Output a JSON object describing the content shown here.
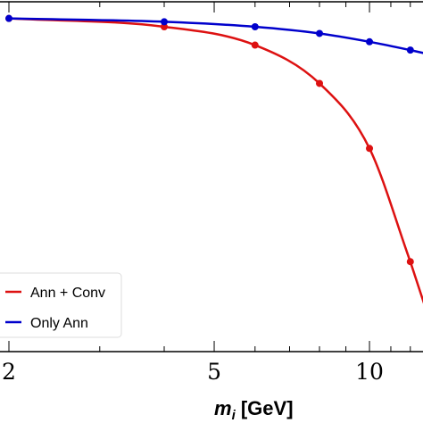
{
  "chart_data": {
    "type": "line",
    "xscale": "log",
    "xlim": [
      2,
      12.8
    ],
    "ylim": [
      0,
      1.05
    ],
    "x_ticks_labeled": [
      2,
      5,
      10
    ],
    "x_tick_labels": [
      "2",
      "5",
      "10"
    ],
    "xlabel_main": "m",
    "xlabel_sub": "i",
    "xlabel_rest": " [GeV]",
    "grid": false,
    "legend_position": "lower-left",
    "series": [
      {
        "name": "Ann + Conv",
        "color": "#dd1111",
        "x": [
          2,
          4,
          6,
          8,
          10,
          12
        ],
        "y": [
          1.0,
          0.975,
          0.92,
          0.805,
          0.61,
          0.27
        ]
      },
      {
        "name": "Only Ann",
        "color": "#0000cc",
        "x": [
          2,
          4,
          6,
          8,
          10,
          12
        ],
        "y": [
          1.0,
          0.99,
          0.975,
          0.955,
          0.93,
          0.905
        ]
      }
    ]
  }
}
